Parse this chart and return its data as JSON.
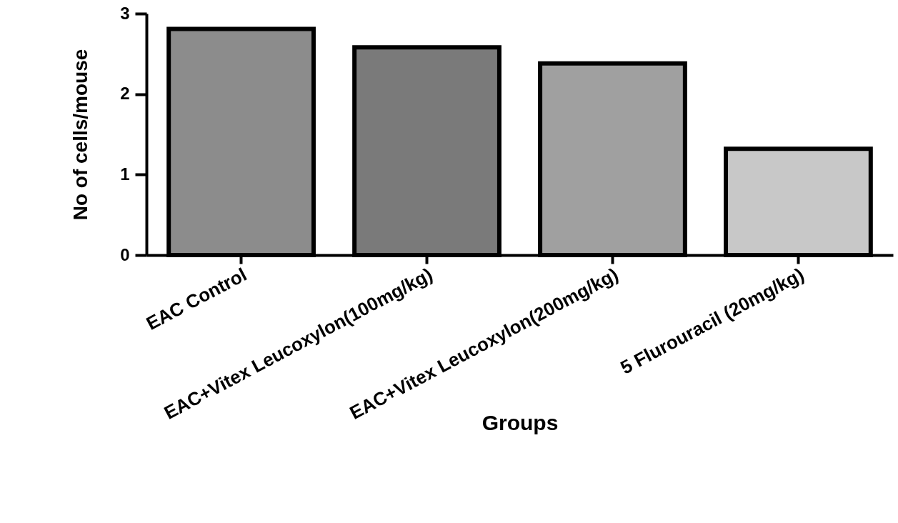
{
  "chart_data": {
    "type": "bar",
    "categories": [
      "EAC Control",
      "EAC+Vitex Leucoxylon(100mg/kg)",
      "EAC+Vitex Leucoxylon(200mg/kg)",
      "5 Flurouracil (20mg/kg)"
    ],
    "values": [
      2.81,
      2.58,
      2.38,
      1.32
    ],
    "colors": [
      "#8c8c8c",
      "#7a7a7a",
      "#a0a0a0",
      "#c8c8c8"
    ],
    "xlabel": "Groups",
    "ylabel": "No of cells/mouse",
    "ylim": [
      0,
      3
    ],
    "yticks": [
      0,
      1,
      2,
      3
    ],
    "grid": false
  }
}
